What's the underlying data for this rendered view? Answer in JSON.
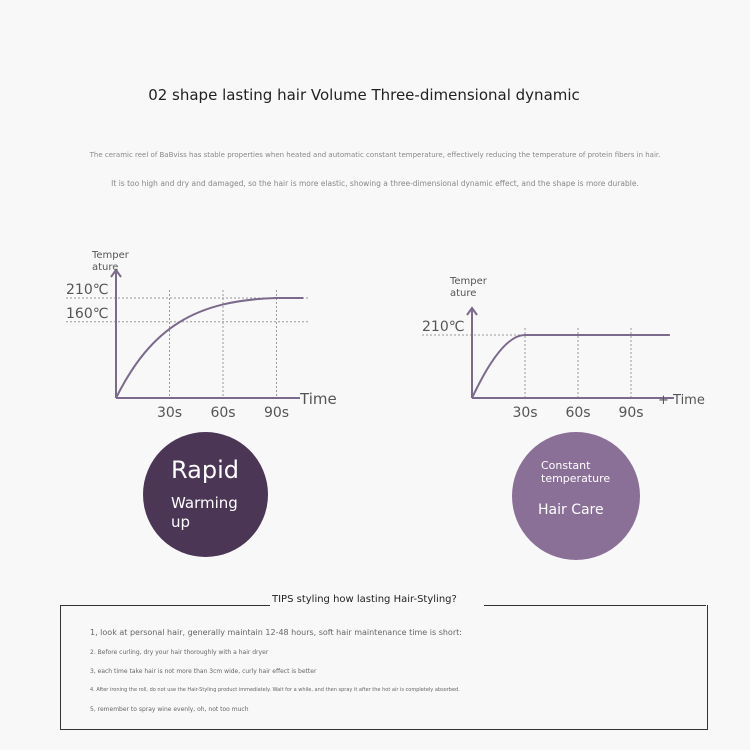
{
  "title": "02 shape lasting hair Volume Three-dimensional dynamic",
  "description": [
    "The ceramic reel of BaBviss has stable properties when heated and automatic constant temperature, effectively reducing the temperature of protein fibers in hair.",
    "It is too high and dry and damaged, so the hair is more elastic, showing a three-dimensional dynamic effect, and the shape is more durable."
  ],
  "colors": {
    "line": "#7b6a8c",
    "circle_left": "#4b3656",
    "circle_right": "#8a6f97"
  },
  "chart_data": [
    {
      "type": "line",
      "ylabel": [
        "Temper",
        "ature"
      ],
      "xlabel": "Time",
      "yticks": [
        "210℃",
        "160℃"
      ],
      "ytick_values": [
        210,
        160
      ],
      "xticks": [
        "30s",
        "60s",
        "90s"
      ],
      "xtick_values": [
        30,
        60,
        90
      ],
      "x": [
        0,
        10,
        20,
        30,
        45,
        60,
        75,
        90,
        105
      ],
      "y": [
        0,
        70,
        115,
        145,
        175,
        193,
        204,
        210,
        210
      ]
    },
    {
      "type": "line",
      "ylabel": [
        "Temper",
        "ature"
      ],
      "xlabel": "+ Time",
      "yticks": [
        "210℃"
      ],
      "ytick_values": [
        210
      ],
      "xticks": [
        "30s",
        "60s",
        "90s"
      ],
      "xtick_values": [
        30,
        60,
        90
      ],
      "x": [
        0,
        10,
        20,
        30,
        60,
        90,
        110
      ],
      "y": [
        0,
        140,
        195,
        210,
        210,
        210,
        210
      ]
    }
  ],
  "badges": [
    {
      "lines": [
        "Rapid",
        "Warming",
        "up"
      ]
    },
    {
      "lines": [
        "Constant",
        "temperature",
        "Hair Care"
      ]
    }
  ],
  "tips": {
    "title": "TIPS styling how lasting Hair-Styling?",
    "items": [
      "1, look at personal hair, generally maintain 12-48 hours, soft hair maintenance time is short:",
      "2. Before curling, dry your hair thoroughly with a hair dryer",
      "3, each time take hair is not more than 3cm wide, curly hair effect is better",
      "4. After ironing the roll, do not use the Hair-Styling product immediately. Wait for a while, and then spray it after the hot air is completely absorbed.",
      "5, remember to spray wine evenly, oh, not too much"
    ]
  }
}
